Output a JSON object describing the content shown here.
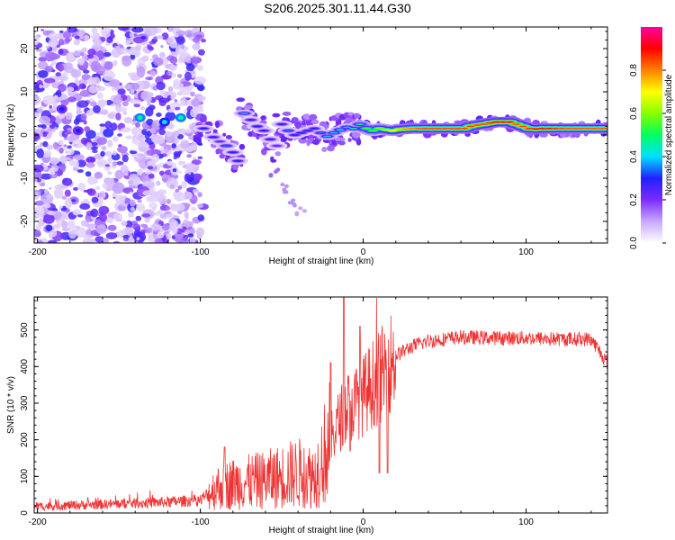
{
  "title": "S206.2025.301.11.44.G30",
  "chart_data": [
    {
      "type": "heatmap",
      "xlabel": "Height of straight line (km)",
      "ylabel": "Frequency (Hz)",
      "xlim": [
        -202,
        150
      ],
      "ylim": [
        -25,
        25
      ],
      "xticks": [
        "-200",
        "-100",
        "0",
        "100"
      ],
      "xtick_values": [
        -200,
        -100,
        0,
        100
      ],
      "yticks": [
        "-20",
        "-10",
        "0",
        "10",
        "20"
      ],
      "ytick_values": [
        -20,
        -10,
        0,
        10,
        20
      ],
      "colorbar": {
        "label": "Normalized spectral amplitude",
        "range": [
          0,
          1
        ],
        "ticks": [
          "0.0",
          "0.2",
          "0.4",
          "0.6",
          "0.8"
        ],
        "tick_values": [
          0.0,
          0.2,
          0.4,
          0.6,
          0.8
        ],
        "colors": [
          "#ffffff",
          "#c8a8ff",
          "#7a2cff",
          "#2020ff",
          "#00e0ff",
          "#00ff60",
          "#ffff00",
          "#ff8000",
          "#ff0000",
          "#ff00a0"
        ]
      },
      "features": {
        "noise_region_x": [
          -202,
          -98
        ],
        "noise_amplitude": [
          0.05,
          0.3
        ],
        "noise_blob_centers": [
          [
            -137,
            4,
            0.45
          ],
          [
            -122,
            3,
            0.4
          ],
          [
            -112,
            4,
            0.45
          ],
          [
            -175,
            1,
            0.3
          ],
          [
            -185,
            6,
            0.3
          ]
        ],
        "signal_points": [
          [
            -98,
            1.5,
            0.3
          ],
          [
            -92,
            -0.5,
            0.3
          ],
          [
            -88,
            -1.5,
            0.25
          ],
          [
            -84,
            -2.5,
            0.35
          ],
          [
            -80,
            -4,
            0.3
          ],
          [
            -77,
            -6,
            0.3
          ],
          [
            -73,
            5,
            0.4
          ],
          [
            -69,
            3.5,
            0.3
          ],
          [
            -65,
            2,
            0.3
          ],
          [
            -61,
            1,
            0.3
          ],
          [
            -57,
            -1,
            0.3
          ],
          [
            -53,
            -2.5,
            0.25
          ],
          [
            -50,
            2.5,
            0.3
          ],
          [
            -46,
            1,
            0.35
          ],
          [
            -42,
            0,
            0.3
          ],
          [
            -38,
            0.5,
            0.3
          ],
          [
            -34,
            1,
            0.3
          ],
          [
            -30,
            1.5,
            0.3
          ],
          [
            -26,
            0.5,
            0.35
          ],
          [
            -22,
            -0.3,
            0.4
          ],
          [
            -18,
            0.5,
            0.4
          ],
          [
            -14,
            1.2,
            0.45
          ],
          [
            -10,
            1.8,
            0.4
          ],
          [
            -6,
            1.5,
            0.45
          ],
          [
            -2,
            2.5,
            0.5
          ],
          [
            2,
            1.5,
            0.55
          ],
          [
            6,
            1.0,
            0.55
          ],
          [
            10,
            1.5,
            0.6
          ],
          [
            14,
            1.2,
            0.65
          ],
          [
            18,
            1.0,
            0.7
          ],
          [
            22,
            1.3,
            0.75
          ],
          [
            26,
            1.4,
            0.8
          ],
          [
            30,
            1.5,
            0.82
          ],
          [
            34,
            1.5,
            0.84
          ],
          [
            38,
            1.5,
            0.86
          ],
          [
            42,
            1.5,
            0.86
          ],
          [
            46,
            1.5,
            0.86
          ],
          [
            50,
            1.5,
            0.86
          ],
          [
            54,
            1.5,
            0.86
          ],
          [
            58,
            1.5,
            0.86
          ],
          [
            62,
            1.5,
            0.86
          ],
          [
            66,
            2.0,
            0.86
          ],
          [
            70,
            2.3,
            0.86
          ],
          [
            74,
            2.5,
            0.86
          ],
          [
            78,
            2.8,
            0.88
          ],
          [
            82,
            3.0,
            0.92
          ],
          [
            86,
            3.0,
            0.92
          ],
          [
            90,
            3.0,
            0.9
          ],
          [
            94,
            2.5,
            0.85
          ],
          [
            98,
            2.0,
            0.85
          ],
          [
            102,
            1.5,
            0.88
          ],
          [
            106,
            1.4,
            0.9
          ],
          [
            110,
            1.5,
            0.92
          ],
          [
            114,
            1.5,
            0.9
          ],
          [
            118,
            1.5,
            0.88
          ],
          [
            122,
            1.5,
            0.86
          ],
          [
            126,
            1.5,
            0.85
          ],
          [
            130,
            1.5,
            0.85
          ],
          [
            134,
            1.5,
            0.85
          ],
          [
            138,
            1.5,
            0.85
          ],
          [
            142,
            1.5,
            0.85
          ],
          [
            146,
            1.5,
            0.85
          ],
          [
            150,
            1.5,
            0.85
          ]
        ],
        "faint_tail_points": [
          [
            -55,
            -9,
            0.15
          ],
          [
            -48,
            -12,
            0.12
          ],
          [
            -42,
            -15,
            0.12
          ],
          [
            -38,
            -18,
            0.1
          ]
        ]
      }
    },
    {
      "type": "line",
      "xlabel": "Height of straight line (km)",
      "ylabel": "SNR (10 * v/v)",
      "xlim": [
        -202,
        150
      ],
      "ylim": [
        0,
        590
      ],
      "xticks": [
        "-200",
        "-100",
        "0",
        "100"
      ],
      "xtick_values": [
        -200,
        -100,
        0,
        100
      ],
      "yticks": [
        "0",
        "100",
        "200",
        "300",
        "400",
        "500"
      ],
      "ytick_values": [
        0,
        100,
        200,
        300,
        400,
        500
      ],
      "color": "#ee3333",
      "baseline_profile": [
        [
          -202,
          18
        ],
        [
          -150,
          25
        ],
        [
          -120,
          30
        ],
        [
          -100,
          35
        ],
        [
          -90,
          70
        ],
        [
          -80,
          80
        ],
        [
          -70,
          85
        ],
        [
          -60,
          90
        ],
        [
          -50,
          100
        ],
        [
          -40,
          110
        ],
        [
          -30,
          100
        ],
        [
          -25,
          150
        ],
        [
          -20,
          200
        ],
        [
          -15,
          250
        ],
        [
          -10,
          290
        ],
        [
          -5,
          300
        ],
        [
          0,
          320
        ],
        [
          5,
          350
        ],
        [
          10,
          370
        ],
        [
          15,
          400
        ],
        [
          20,
          430
        ],
        [
          30,
          455
        ],
        [
          40,
          470
        ],
        [
          60,
          480
        ],
        [
          80,
          478
        ],
        [
          100,
          478
        ],
        [
          120,
          475
        ],
        [
          140,
          475
        ],
        [
          150,
          410
        ]
      ],
      "spikes": [
        [
          -12,
          590
        ],
        [
          -8,
          170
        ],
        [
          -2,
          510
        ],
        [
          10,
          110
        ],
        [
          15,
          110
        ],
        [
          -20,
          410
        ],
        [
          -26,
          120
        ],
        [
          -85,
          180
        ]
      ]
    }
  ]
}
